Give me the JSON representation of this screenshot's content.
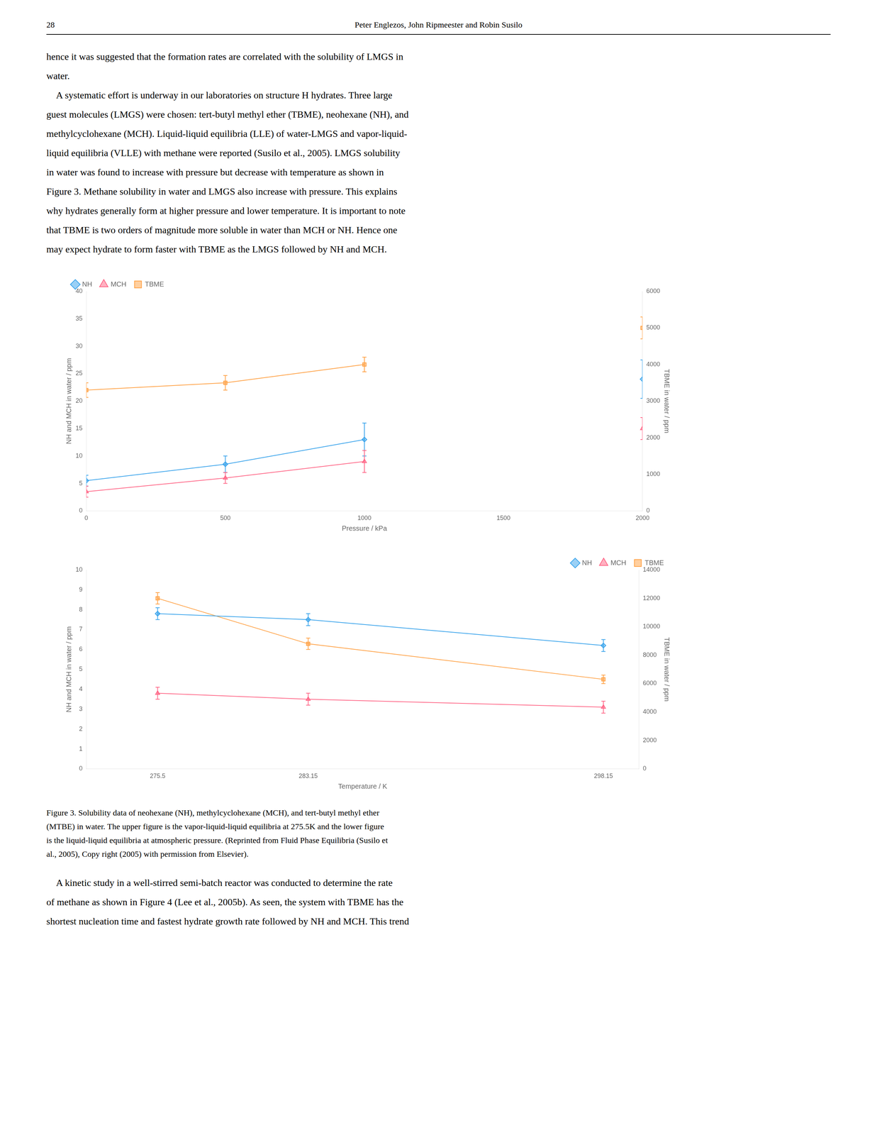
{
  "page_number": "28",
  "page_title": "Peter Englezos, John Ripmeester and Robin Susilo",
  "body_text": [
    "hence it was suggested that the formation rates are correlated with the solubility of LMGS in",
    "water.",
    "    A systematic effort is underway in our laboratories on structure H hydrates. Three large",
    "guest molecules (LMGS) were chosen: tert-butyl methyl ether (TBME), neohexane (NH), and",
    "methylcyclohexane (MCH). Liquid-liquid equilibria (LLE) of water-LMGS and vapor-liquid-",
    "liquid equilibria (VLLE) with methane were reported (Susilo et al., 2005). LMGS solubility",
    "in water was found to increase with pressure but decrease with temperature as shown in",
    "Figure 3. Methane solubility in water and LMGS also increase with pressure. This explains",
    "why hydrates generally form at higher pressure and lower temperature. It is important to note",
    "that TBME is two orders of magnitude more soluble in water than MCH or NH. Hence one",
    "may expect hydrate to form faster with TBME as the LMGS followed by NH and MCH."
  ],
  "caption": "Figure 3. Solubility data of neohexane (NH), methylcyclohexane (MCH), and tert-butyl methyl ether\n(MTBE) in water. The upper figure is the vapor-liquid-liquid equilibria at 275.5K and the lower figure\nis the liquid-liquid equilibria at atmospheric pressure. (Reprinted from Fluid Phase Equilibria (Susilo et\nal., 2005), Copy right (2005) with permission from Elsevier).",
  "footer_text": [
    "    A kinetic study in a well-stirred semi-batch reactor was conducted to determine the rate",
    "of methane as shown in Figure 4 (Lee et al., 2005b). As seen, the system with TBME has the",
    "shortest nucleation time and fastest hydrate growth rate followed by NH and MCH. This trend"
  ],
  "chart_data": [
    {
      "type": "line",
      "x_label": "Pressure / kPa",
      "y_label": "NH and MCH in water / ppm",
      "y2_label": "TBME in water / ppm",
      "xlim": [
        0,
        2000
      ],
      "xticks": [
        0,
        500,
        1000,
        1500,
        2000
      ],
      "ylim": [
        0,
        40
      ],
      "yticks": [
        0,
        5,
        10,
        15,
        20,
        25,
        30,
        35,
        40
      ],
      "y2lim": [
        0,
        6000
      ],
      "y2ticks": [
        0,
        1000,
        2000,
        3000,
        4000,
        5000,
        6000
      ],
      "grid": false,
      "legend": "upper left",
      "x": [
        0,
        500,
        1000,
        1500,
        2000
      ],
      "series": [
        {
          "name": "NH",
          "marker": "diamond",
          "values": [
            5.5,
            8.5,
            13.0,
            null,
            24.0
          ],
          "errors": [
            1.0,
            1.5,
            3.0,
            null,
            3.5
          ]
        },
        {
          "name": "MCH",
          "marker": "triangle",
          "values": [
            3.5,
            6.0,
            9.0,
            null,
            15.0
          ],
          "errors": [
            1.0,
            1.0,
            2.0,
            null,
            2.0
          ]
        },
        {
          "name": "TBME",
          "marker": "square",
          "axis": "y2",
          "values": [
            3300,
            3500,
            4000,
            null,
            5000
          ],
          "errors": [
            200,
            200,
            200,
            null,
            300
          ]
        }
      ]
    },
    {
      "type": "line",
      "x_label": "Temperature / K",
      "y_label": "NH and MCH in water / ppm",
      "y2_label": "TBME in water / ppm",
      "xlim": [
        271.876,
        299.962
      ],
      "xticks": [
        275.5,
        283.15,
        298.15
      ],
      "ylim": [
        0,
        10
      ],
      "yticks": [
        0,
        1,
        2,
        3,
        4,
        5,
        6,
        7,
        8,
        9,
        10
      ],
      "y2lim": [
        0,
        14000
      ],
      "y2ticks": [
        0,
        2000,
        4000,
        6000,
        8000,
        10000,
        12000,
        14000
      ],
      "grid": false,
      "legend": "upper right",
      "x": [
        275.5,
        283.15,
        298.15
      ],
      "series": [
        {
          "name": "NH",
          "marker": "diamond",
          "values": [
            7.8,
            7.5,
            6.2
          ],
          "errors": [
            0.3,
            0.3,
            0.3
          ]
        },
        {
          "name": "MCH",
          "marker": "triangle",
          "values": [
            3.8,
            3.5,
            3.1
          ],
          "errors": [
            0.3,
            0.3,
            0.3
          ]
        },
        {
          "name": "TBME",
          "marker": "square",
          "axis": "y2",
          "values": [
            12000,
            8800,
            6300
          ],
          "errors": [
            400,
            400,
            300
          ]
        }
      ]
    }
  ]
}
